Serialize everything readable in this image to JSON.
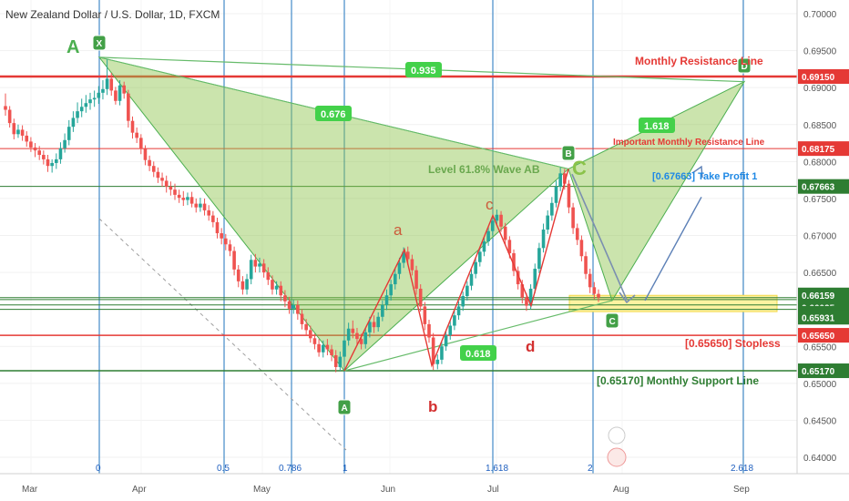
{
  "title": "New Zealand Dollar / U.S. Dollar, 1D, FXCM",
  "chart_data": {
    "type": "candlestick",
    "y_axis": {
      "range": [
        0.6395,
        0.7012
      ],
      "ticks": [
        "0.70000",
        "0.69500",
        "0.69000",
        "0.68500",
        "0.68000",
        "0.67500",
        "0.67000",
        "0.66500",
        "0.66000",
        "0.65500",
        "0.65000",
        "0.64500",
        "0.64000"
      ]
    },
    "x_axis": {
      "labels": [
        "Mar",
        "Apr",
        "May",
        "Jun",
        "Jul",
        "Aug",
        "Sep"
      ]
    },
    "price_tags": [
      {
        "label": "0.69150",
        "value": 0.6915,
        "color": "#e53935"
      },
      {
        "label": "0.68175",
        "value": 0.68175,
        "color": "#e53935"
      },
      {
        "label": "0.67663",
        "value": 0.67663,
        "color": "#2e7d32"
      },
      {
        "label": "0.66159",
        "value": 0.66159,
        "color": "#2e7d32"
      },
      {
        "label": "0.66133",
        "value": 0.66133,
        "color": "#2e7d32"
      },
      {
        "label": "0.66025",
        "value": 0.66025,
        "color": "#2e7d32"
      },
      {
        "label": "0.65985",
        "value": 0.65985,
        "color": "#2e7d32"
      },
      {
        "label": "0.65931",
        "value": 0.65931,
        "color": "#2e7d32"
      },
      {
        "label": "0.65650",
        "value": 0.6565,
        "color": "#e53935"
      },
      {
        "label": "0.65170",
        "value": 0.6517,
        "color": "#2e7d32"
      }
    ],
    "candles": [
      [
        0.6875,
        0.687,
        0.6892,
        0.6862
      ],
      [
        0.687,
        0.6852,
        0.6875,
        0.6846
      ],
      [
        0.6852,
        0.6837,
        0.6858,
        0.683
      ],
      [
        0.6837,
        0.6843,
        0.685,
        0.6832
      ],
      [
        0.6843,
        0.6835,
        0.6849,
        0.6828
      ],
      [
        0.6835,
        0.6827,
        0.6841,
        0.682
      ],
      [
        0.6827,
        0.6819,
        0.6833,
        0.6813
      ],
      [
        0.6819,
        0.6815,
        0.6825,
        0.6806
      ],
      [
        0.6815,
        0.6809,
        0.6821,
        0.6802
      ],
      [
        0.6809,
        0.6803,
        0.6815,
        0.6796
      ],
      [
        0.6803,
        0.6794,
        0.6809,
        0.6786
      ],
      [
        0.6794,
        0.6798,
        0.6803,
        0.6785
      ],
      [
        0.6798,
        0.6803,
        0.6811,
        0.679
      ],
      [
        0.6803,
        0.6818,
        0.6826,
        0.6797
      ],
      [
        0.6818,
        0.6829,
        0.6838,
        0.6812
      ],
      [
        0.6829,
        0.6847,
        0.6856,
        0.6822
      ],
      [
        0.6847,
        0.6859,
        0.6868,
        0.684
      ],
      [
        0.6859,
        0.6868,
        0.688,
        0.6852
      ],
      [
        0.6868,
        0.6874,
        0.6885,
        0.686
      ],
      [
        0.6874,
        0.6879,
        0.689,
        0.6866
      ],
      [
        0.6879,
        0.6884,
        0.6893,
        0.687
      ],
      [
        0.6884,
        0.6886,
        0.6896,
        0.6874
      ],
      [
        0.6886,
        0.6893,
        0.6902,
        0.6878
      ],
      [
        0.6893,
        0.6898,
        0.691,
        0.6884
      ],
      [
        0.6898,
        0.6912,
        0.6938,
        0.689
      ],
      [
        0.6912,
        0.6896,
        0.692,
        0.6889
      ],
      [
        0.6896,
        0.6882,
        0.6901,
        0.6877
      ],
      [
        0.6882,
        0.6903,
        0.691,
        0.6876
      ],
      [
        0.6903,
        0.6892,
        0.6908,
        0.6885
      ],
      [
        0.6892,
        0.6855,
        0.6897,
        0.6846
      ],
      [
        0.6855,
        0.6839,
        0.6861,
        0.6831
      ],
      [
        0.6839,
        0.6832,
        0.6846,
        0.6825
      ],
      [
        0.6832,
        0.6817,
        0.6837,
        0.681
      ],
      [
        0.6817,
        0.6802,
        0.6822,
        0.6795
      ],
      [
        0.6802,
        0.6794,
        0.6808,
        0.6787
      ],
      [
        0.6794,
        0.6786,
        0.68,
        0.6779
      ],
      [
        0.6786,
        0.6778,
        0.6792,
        0.6771
      ],
      [
        0.6778,
        0.6774,
        0.6785,
        0.6766
      ],
      [
        0.6774,
        0.6766,
        0.6781,
        0.6758
      ],
      [
        0.6766,
        0.6762,
        0.6773,
        0.6754
      ],
      [
        0.6762,
        0.6755,
        0.677,
        0.6748
      ],
      [
        0.6755,
        0.6751,
        0.6762,
        0.6744
      ],
      [
        0.6751,
        0.6748,
        0.676,
        0.674
      ],
      [
        0.6748,
        0.6752,
        0.6758,
        0.6741
      ],
      [
        0.6752,
        0.6743,
        0.6759,
        0.6738
      ],
      [
        0.6743,
        0.6738,
        0.675,
        0.6731
      ],
      [
        0.6738,
        0.6743,
        0.6751,
        0.6732
      ],
      [
        0.6743,
        0.6734,
        0.675,
        0.6727
      ],
      [
        0.6734,
        0.6727,
        0.6741,
        0.672
      ],
      [
        0.6727,
        0.6718,
        0.6733,
        0.6711
      ],
      [
        0.6718,
        0.6703,
        0.6724,
        0.6696
      ],
      [
        0.6703,
        0.6696,
        0.671,
        0.6688
      ],
      [
        0.6696,
        0.6688,
        0.6702,
        0.668
      ],
      [
        0.6688,
        0.6679,
        0.6694,
        0.6672
      ],
      [
        0.6679,
        0.6654,
        0.6685,
        0.6646
      ],
      [
        0.6654,
        0.6638,
        0.666,
        0.663
      ],
      [
        0.6638,
        0.6627,
        0.6645,
        0.662
      ],
      [
        0.6627,
        0.6641,
        0.6648,
        0.662
      ],
      [
        0.6641,
        0.6667,
        0.6674,
        0.6634
      ],
      [
        0.6667,
        0.6658,
        0.6675,
        0.665
      ],
      [
        0.6658,
        0.6662,
        0.667,
        0.665
      ],
      [
        0.6662,
        0.665,
        0.6668,
        0.6643
      ],
      [
        0.665,
        0.664,
        0.6657,
        0.6633
      ],
      [
        0.664,
        0.6627,
        0.6646,
        0.662
      ],
      [
        0.6627,
        0.6632,
        0.6638,
        0.662
      ],
      [
        0.6632,
        0.6619,
        0.6638,
        0.6611
      ],
      [
        0.6619,
        0.6611,
        0.6626,
        0.6603
      ],
      [
        0.6611,
        0.6601,
        0.6617,
        0.6594
      ],
      [
        0.6601,
        0.6606,
        0.6613,
        0.6594
      ],
      [
        0.6606,
        0.6594,
        0.6612,
        0.6586
      ],
      [
        0.6594,
        0.658,
        0.66,
        0.6573
      ],
      [
        0.658,
        0.6572,
        0.6587,
        0.6564
      ],
      [
        0.6572,
        0.6561,
        0.6578,
        0.6555
      ],
      [
        0.6561,
        0.6553,
        0.6567,
        0.6546
      ],
      [
        0.6553,
        0.6542,
        0.656,
        0.6536
      ],
      [
        0.6542,
        0.6552,
        0.6558,
        0.6535
      ],
      [
        0.6552,
        0.6546,
        0.656,
        0.6538
      ],
      [
        0.6546,
        0.6538,
        0.6552,
        0.653
      ],
      [
        0.6538,
        0.6522,
        0.6545,
        0.6515
      ],
      [
        0.6522,
        0.6536,
        0.6543,
        0.6517
      ],
      [
        0.6536,
        0.6558,
        0.6565,
        0.653
      ],
      [
        0.6558,
        0.6574,
        0.6582,
        0.6551
      ],
      [
        0.6574,
        0.6568,
        0.6585,
        0.6561
      ],
      [
        0.6568,
        0.656,
        0.6575,
        0.6552
      ],
      [
        0.656,
        0.6553,
        0.6567,
        0.6546
      ],
      [
        0.6553,
        0.6569,
        0.6575,
        0.6547
      ],
      [
        0.6569,
        0.6583,
        0.659,
        0.6562
      ],
      [
        0.6583,
        0.6576,
        0.6592,
        0.6568
      ],
      [
        0.6576,
        0.659,
        0.6596,
        0.657
      ],
      [
        0.659,
        0.6606,
        0.6612,
        0.6584
      ],
      [
        0.6606,
        0.6619,
        0.6627,
        0.6599
      ],
      [
        0.6619,
        0.6634,
        0.664,
        0.6612
      ],
      [
        0.6634,
        0.6648,
        0.6655,
        0.6627
      ],
      [
        0.6648,
        0.6663,
        0.667,
        0.6641
      ],
      [
        0.6663,
        0.6678,
        0.6684,
        0.6656
      ],
      [
        0.6678,
        0.6668,
        0.6685,
        0.666
      ],
      [
        0.6668,
        0.6653,
        0.6674,
        0.6646
      ],
      [
        0.6653,
        0.6628,
        0.6659,
        0.662
      ],
      [
        0.6628,
        0.6604,
        0.6634,
        0.6597
      ],
      [
        0.6604,
        0.658,
        0.661,
        0.6572
      ],
      [
        0.658,
        0.6562,
        0.6586,
        0.6555
      ],
      [
        0.6562,
        0.6526,
        0.6568,
        0.6518
      ],
      [
        0.6526,
        0.6532,
        0.6539,
        0.6519
      ],
      [
        0.6532,
        0.655,
        0.6556,
        0.6526
      ],
      [
        0.655,
        0.6565,
        0.6572,
        0.6544
      ],
      [
        0.6565,
        0.6578,
        0.6585,
        0.6559
      ],
      [
        0.6578,
        0.6592,
        0.6598,
        0.6572
      ],
      [
        0.6592,
        0.6604,
        0.6611,
        0.6586
      ],
      [
        0.6604,
        0.6618,
        0.6624,
        0.6598
      ],
      [
        0.6618,
        0.6632,
        0.6638,
        0.6612
      ],
      [
        0.6632,
        0.6648,
        0.6654,
        0.6626
      ],
      [
        0.6648,
        0.6664,
        0.667,
        0.6642
      ],
      [
        0.6664,
        0.6678,
        0.6684,
        0.6658
      ],
      [
        0.6678,
        0.6692,
        0.6698,
        0.6672
      ],
      [
        0.6692,
        0.6706,
        0.6712,
        0.6686
      ],
      [
        0.6706,
        0.672,
        0.6727,
        0.67
      ],
      [
        0.672,
        0.6728,
        0.6735,
        0.6713
      ],
      [
        0.6728,
        0.6712,
        0.6733,
        0.6705
      ],
      [
        0.6712,
        0.6694,
        0.6717,
        0.6687
      ],
      [
        0.6694,
        0.6676,
        0.6699,
        0.6669
      ],
      [
        0.6676,
        0.6652,
        0.6681,
        0.6645
      ],
      [
        0.6652,
        0.6634,
        0.6658,
        0.6627
      ],
      [
        0.6634,
        0.6616,
        0.664,
        0.6608
      ],
      [
        0.6616,
        0.6605,
        0.6622,
        0.6598
      ],
      [
        0.6605,
        0.6628,
        0.6634,
        0.66
      ],
      [
        0.6628,
        0.6655,
        0.6662,
        0.6622
      ],
      [
        0.6655,
        0.6683,
        0.669,
        0.6649
      ],
      [
        0.6683,
        0.6708,
        0.6716,
        0.6677
      ],
      [
        0.6708,
        0.6727,
        0.6734,
        0.6702
      ],
      [
        0.6727,
        0.6744,
        0.6752,
        0.672
      ],
      [
        0.6744,
        0.6766,
        0.6774,
        0.6738
      ],
      [
        0.6766,
        0.6784,
        0.6792,
        0.676
      ],
      [
        0.6784,
        0.677,
        0.679,
        0.6762
      ],
      [
        0.677,
        0.6738,
        0.6775,
        0.673
      ],
      [
        0.6738,
        0.671,
        0.6744,
        0.6702
      ],
      [
        0.671,
        0.6694,
        0.6716,
        0.6687
      ],
      [
        0.6694,
        0.6672,
        0.67,
        0.6665
      ],
      [
        0.6672,
        0.6648,
        0.6678,
        0.6641
      ],
      [
        0.6648,
        0.663,
        0.6655,
        0.6622
      ],
      [
        0.663,
        0.6621,
        0.6637,
        0.6614
      ],
      [
        0.6621,
        0.6616,
        0.6627,
        0.661
      ]
    ],
    "vertical_lines": [
      {
        "label": "0"
      },
      {
        "label": "0.5"
      },
      {
        "label": "0.786"
      },
      {
        "label": "1"
      },
      {
        "label": "1.618"
      },
      {
        "label": "2"
      },
      {
        "label": "2.618"
      }
    ],
    "harmonic_points": [
      "X",
      "A",
      "B",
      "C",
      "D"
    ],
    "harmonic_ratios": [
      "0.935",
      "0.676",
      "1.618",
      "0.618"
    ],
    "wave_labels": {
      "a": "a",
      "b": "b",
      "c": "c",
      "d": "d"
    },
    "big_labels": {
      "A": "A",
      "C": "C"
    },
    "annotations": {
      "monthly_resistance": "Monthly Resistance Line",
      "important_resistance": "Important Monthly Resistance Line",
      "wave_ab": "Level 61.8% Wave AB",
      "take_profit": "[0.67663] Take Profit 1",
      "stoploss": "[0.65650] Stopless",
      "monthly_support": "[0.65170] Monthly Support Line"
    },
    "colors": {
      "bull": "#26a69a",
      "bear": "#ef5350",
      "resistance": "#e53935",
      "support": "#2e7d32",
      "pattern_fill": "#8bc34a",
      "fib_line": "#1e73be",
      "zone": "#fff3a0"
    }
  }
}
